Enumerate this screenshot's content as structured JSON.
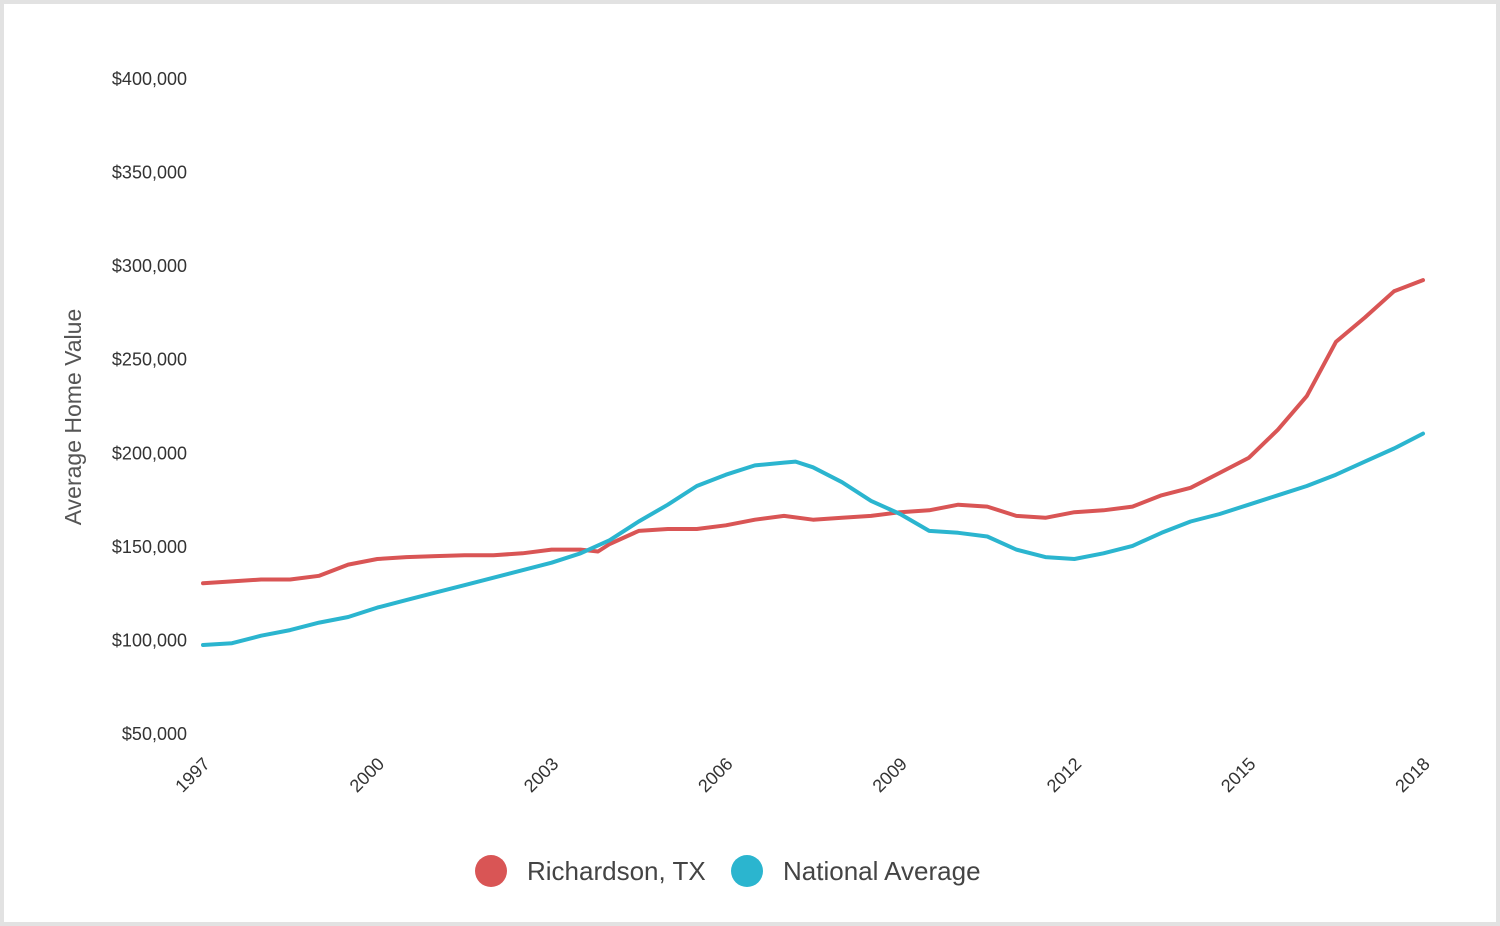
{
  "chart_data": {
    "type": "line",
    "title": "",
    "xlabel": "",
    "ylabel": "Average Home Value",
    "xlim": [
      1997,
      2018
    ],
    "ylim": [
      50000,
      400000
    ],
    "x_ticks": [
      {
        "value": 1997,
        "label": "1997"
      },
      {
        "value": 2000,
        "label": "2000"
      },
      {
        "value": 2003,
        "label": "2003"
      },
      {
        "value": 2006,
        "label": "2006"
      },
      {
        "value": 2009,
        "label": "2009"
      },
      {
        "value": 2012,
        "label": "2012"
      },
      {
        "value": 2015,
        "label": "2015"
      },
      {
        "value": 2018,
        "label": "2018"
      }
    ],
    "y_ticks": [
      {
        "value": 50000,
        "label": "$50,000"
      },
      {
        "value": 100000,
        "label": "$100,000"
      },
      {
        "value": 150000,
        "label": "$150,000"
      },
      {
        "value": 200000,
        "label": "$200,000"
      },
      {
        "value": 250000,
        "label": "$250,000"
      },
      {
        "value": 300000,
        "label": "$300,000"
      },
      {
        "value": 350000,
        "label": "$350,000"
      },
      {
        "value": 400000,
        "label": "$400,000"
      }
    ],
    "grid": false,
    "legend_position": "bottom-center",
    "series": [
      {
        "name": "Richardson, TX",
        "color": "#d95555",
        "x": [
          1997.0,
          1997.5,
          1998.0,
          1998.5,
          1999.0,
          1999.5,
          2000.0,
          2000.5,
          2001.0,
          2001.5,
          2002.0,
          2002.5,
          2003.0,
          2003.5,
          2003.8,
          2004.0,
          2004.5,
          2005.0,
          2005.5,
          2006.0,
          2006.5,
          2007.0,
          2007.5,
          2008.0,
          2008.5,
          2009.0,
          2009.5,
          2010.0,
          2010.5,
          2011.0,
          2011.5,
          2012.0,
          2012.5,
          2013.0,
          2013.5,
          2014.0,
          2014.5,
          2015.0,
          2015.5,
          2016.0,
          2016.5,
          2017.0,
          2017.5,
          2018.0
        ],
        "y": [
          130000,
          131000,
          132000,
          132000,
          134000,
          140000,
          143000,
          144000,
          144500,
          145000,
          145000,
          146000,
          148000,
          148000,
          147000,
          151000,
          158000,
          159000,
          159000,
          161000,
          164000,
          166000,
          164000,
          165000,
          166000,
          168000,
          169000,
          172000,
          171000,
          166000,
          165000,
          168000,
          169000,
          171000,
          177000,
          181000,
          189000,
          197000,
          212000,
          230000,
          259000,
          272000,
          286000,
          292000
        ]
      },
      {
        "name": "National Average",
        "color": "#2bb5cf",
        "x": [
          1997.0,
          1997.5,
          1998.0,
          1998.5,
          1999.0,
          1999.5,
          2000.0,
          2000.5,
          2001.0,
          2001.5,
          2002.0,
          2002.5,
          2003.0,
          2003.5,
          2004.0,
          2004.5,
          2005.0,
          2005.5,
          2006.0,
          2006.5,
          2007.0,
          2007.2,
          2007.5,
          2008.0,
          2008.5,
          2009.0,
          2009.5,
          2010.0,
          2010.5,
          2011.0,
          2011.5,
          2012.0,
          2012.5,
          2013.0,
          2013.5,
          2014.0,
          2014.5,
          2015.0,
          2015.5,
          2016.0,
          2016.5,
          2017.0,
          2017.5,
          2018.0
        ],
        "y": [
          97000,
          98000,
          102000,
          105000,
          109000,
          112000,
          117000,
          121000,
          125000,
          129000,
          133000,
          137000,
          141000,
          146000,
          153000,
          163000,
          172000,
          182000,
          188000,
          193000,
          194500,
          195000,
          192000,
          184000,
          174000,
          167000,
          158000,
          157000,
          155000,
          148000,
          144000,
          143000,
          146000,
          150000,
          157000,
          163000,
          167000,
          172000,
          177000,
          182000,
          188000,
          195000,
          202000,
          210000
        ]
      }
    ]
  }
}
